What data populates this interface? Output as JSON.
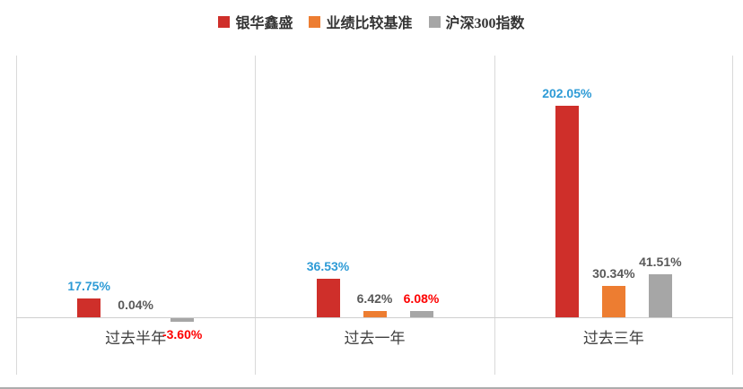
{
  "legend": {
    "items": [
      {
        "label": "银华鑫盛",
        "color": "#cf2f2a"
      },
      {
        "label": "业绩比较基准",
        "color": "#ed7d31"
      },
      {
        "label": "沪深300指数",
        "color": "#a6a6a6"
      }
    ]
  },
  "chart_data": {
    "type": "bar",
    "title": "",
    "xlabel": "",
    "ylabel": "",
    "categories": [
      "过去半年",
      "过去一年",
      "过去三年"
    ],
    "series": [
      {
        "name": "银华鑫盛",
        "color": "#cf2f2a",
        "values": [
          17.75,
          36.53,
          202.05
        ],
        "labels": [
          "17.75%",
          "36.53%",
          "202.05%"
        ],
        "label_colors": [
          "#2e9bd6",
          "#2e9bd6",
          "#2e9bd6"
        ]
      },
      {
        "name": "业绩比较基准",
        "color": "#ed7d31",
        "values": [
          0.04,
          6.42,
          30.34
        ],
        "labels": [
          "0.04%",
          "6.42%",
          "30.34%"
        ],
        "label_colors": [
          "#595959",
          "#595959",
          "#595959"
        ]
      },
      {
        "name": "沪深300指数",
        "color": "#a6a6a6",
        "values": [
          -3.6,
          6.08,
          41.51
        ],
        "labels": [
          "-3.60%",
          "6.08%",
          "41.51%"
        ],
        "label_colors": [
          "#fe0000",
          "#fe0000",
          "#595959"
        ]
      }
    ],
    "ylim": [
      -50,
      250
    ],
    "grid": "vertical-category-separators",
    "legend_position": "top",
    "axis_color": "#cfcfcf",
    "category_label_color": "#404040"
  }
}
